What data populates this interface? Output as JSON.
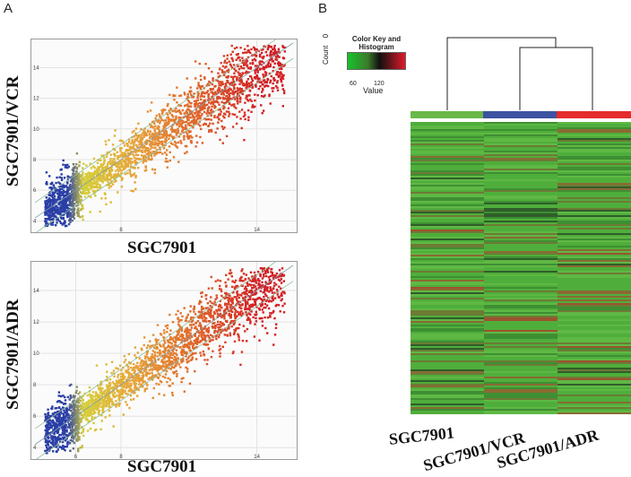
{
  "figure": {
    "panel_a_letter": "A",
    "panel_b_letter": "B"
  },
  "chart_data": [
    {
      "type": "scatter",
      "panel": "A-top",
      "xlabel": "SGC7901",
      "ylabel": "SGC7901/VCR",
      "xlim": [
        4.2,
        15.6
      ],
      "ylim": [
        3.5,
        15.6
      ],
      "x_ticks": [
        8,
        14
      ],
      "y_ticks": [
        4,
        6,
        8,
        10,
        12,
        14
      ],
      "guide_lines": "diagonal y = x with parallel fold-change lines",
      "color_scale": [
        "#2a3ea6",
        "#d6cf3a",
        "#e8a43a",
        "#e06a2a",
        "#d21f24"
      ],
      "point_cloud": "dense band along the diagonal from about (4.5, 4.5) to (15, 15), colored blue at low expression through yellow and orange to red at high expression"
    },
    {
      "type": "scatter",
      "panel": "A-bottom",
      "xlabel": "SGC7901",
      "ylabel": "SGC7901/ADR",
      "xlim": [
        4.2,
        15.6
      ],
      "ylim": [
        3.5,
        15.6
      ],
      "x_ticks": [
        6,
        8,
        14
      ],
      "y_ticks": [
        4,
        6,
        8,
        10,
        12,
        14
      ],
      "guide_lines": "diagonal y = x with parallel fold-change lines",
      "color_scale": [
        "#2a3ea6",
        "#d6cf3a",
        "#e8a43a",
        "#e06a2a",
        "#d21f24"
      ],
      "point_cloud": "dense band along the diagonal from about (4.5, 4.5) to (15, 15), colored blue at low expression through yellow and orange to red at high expression"
    },
    {
      "type": "heatmap",
      "panel": "B",
      "columns": [
        "SGC7901",
        "SGC7901/VCR",
        "SGC7901/ADR"
      ],
      "column_colors": [
        "#69b84a",
        "#3d52a0",
        "#e52c2c"
      ],
      "dendrogram": "SGC7901/VCR and SGC7901/ADR cluster first, then join SGC7901",
      "color_key": {
        "title": "Color Key and Histogram",
        "y_axis_label": "Count",
        "y_axis_tick": "0",
        "x_axis_label": "Value",
        "ticks": [
          "60",
          "120"
        ],
        "gradient": [
          "#17c22a",
          "#3c7a2c",
          "#111111",
          "#5c1418",
          "#e2192c"
        ]
      },
      "cell_palette": [
        "#4fae3b",
        "#5fb844",
        "#3e8f33",
        "#6d7a35",
        "#8a6a33",
        "#2f5e2a",
        "#9c5230"
      ]
    }
  ]
}
